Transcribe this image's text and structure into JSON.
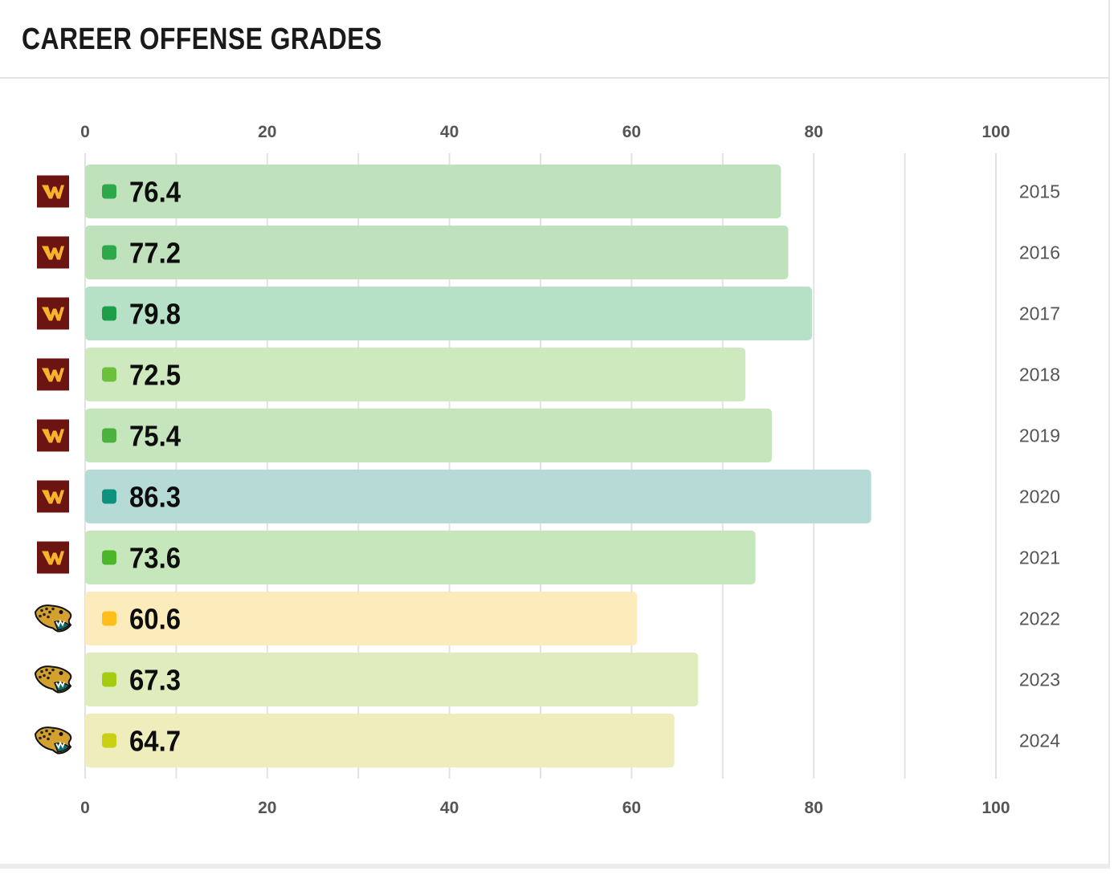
{
  "card": {
    "title": "CAREER OFFENSE GRADES"
  },
  "chart_data": {
    "type": "bar",
    "orientation": "horizontal",
    "title": "CAREER OFFENSE GRADES",
    "xlim": [
      0,
      100
    ],
    "x_ticks": [
      0,
      20,
      40,
      60,
      80,
      100
    ],
    "grid": true,
    "categories": [
      "2015",
      "2016",
      "2017",
      "2018",
      "2019",
      "2020",
      "2021",
      "2022",
      "2023",
      "2024"
    ],
    "values": [
      76.4,
      77.2,
      79.8,
      72.5,
      75.4,
      86.3,
      73.6,
      60.6,
      67.3,
      64.7
    ],
    "value_labels": [
      "76.4",
      "77.2",
      "79.8",
      "72.5",
      "75.4",
      "86.3",
      "73.6",
      "60.6",
      "67.3",
      "64.7"
    ],
    "teams": [
      "washington",
      "washington",
      "washington",
      "washington",
      "washington",
      "washington",
      "washington",
      "jacksonville",
      "jacksonville",
      "jacksonville"
    ],
    "team_icons": {
      "washington": "washington-w-logo-icon",
      "jacksonville": "jaguar-head-logo-icon"
    },
    "bar_colors": [
      "#bfe2bd",
      "#bfe2bd",
      "#b7e1c6",
      "#cde9bd",
      "#c5e5bd",
      "#b6dbd6",
      "#c5e7bb",
      "#fdecbb",
      "#dfecbd",
      "#eeedbb"
    ],
    "dot_colors": [
      "#2ea84a",
      "#2ea84a",
      "#1f9e4a",
      "#6cc13c",
      "#4cb23e",
      "#0f9180",
      "#4cb52a",
      "#ffbf1a",
      "#a6cc12",
      "#ccd015"
    ]
  }
}
